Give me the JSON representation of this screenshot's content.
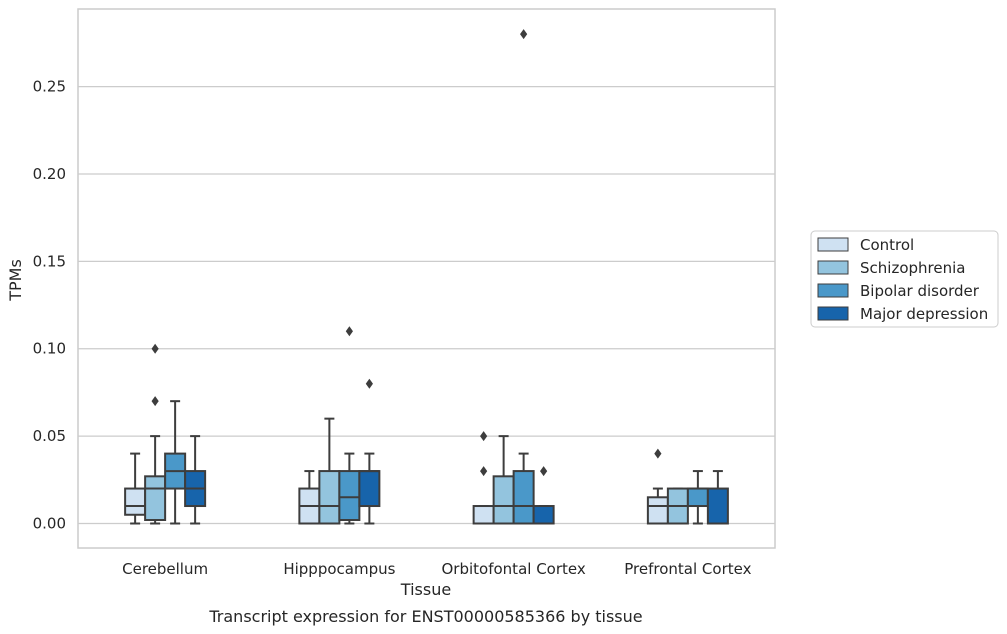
{
  "caption": "Transcript expression for ENST00000585366 by tissue",
  "chart_data": {
    "type": "box",
    "xlabel": "Tissue",
    "ylabel": "TPMs",
    "ylim": [
      -0.013,
      0.294
    ],
    "yticks": [
      "0.00",
      "0.05",
      "0.10",
      "0.15",
      "0.20",
      "0.25"
    ],
    "ytick_values": [
      0.0,
      0.05,
      0.1,
      0.15,
      0.2,
      0.25
    ],
    "grid": "horizontal",
    "legend_position": "right",
    "categories": [
      "Cerebellum",
      "Hipppocampus",
      "Orbitofontal Cortex",
      "Prefrontal Cortex"
    ],
    "series": [
      {
        "name": "Control",
        "color": "#cfe1f2",
        "boxes": [
          {
            "whislo": 0.0,
            "q1": 0.005,
            "med": 0.01,
            "q3": 0.02,
            "whishi": 0.04,
            "fliers": []
          },
          {
            "whislo": 0.0,
            "q1": 0.0,
            "med": 0.01,
            "q3": 0.02,
            "whishi": 0.03,
            "fliers": []
          },
          {
            "whislo": 0.0,
            "q1": 0.0,
            "med": 0.0,
            "q3": 0.01,
            "whishi": 0.01,
            "fliers": [
              0.03,
              0.05
            ]
          },
          {
            "whislo": 0.0,
            "q1": 0.0,
            "med": 0.01,
            "q3": 0.015,
            "whishi": 0.02,
            "fliers": [
              0.04
            ]
          }
        ]
      },
      {
        "name": "Schizophrenia",
        "color": "#93c4de",
        "boxes": [
          {
            "whislo": 0.0,
            "q1": 0.002,
            "med": 0.02,
            "q3": 0.027,
            "whishi": 0.05,
            "fliers": [
              0.07,
              0.1
            ]
          },
          {
            "whislo": 0.0,
            "q1": 0.0,
            "med": 0.01,
            "q3": 0.03,
            "whishi": 0.06,
            "fliers": []
          },
          {
            "whislo": 0.0,
            "q1": 0.0,
            "med": 0.01,
            "q3": 0.027,
            "whishi": 0.05,
            "fliers": []
          },
          {
            "whislo": 0.0,
            "q1": 0.0,
            "med": 0.01,
            "q3": 0.02,
            "whishi": 0.02,
            "fliers": []
          }
        ]
      },
      {
        "name": "Bipolar disorder",
        "color": "#4a98c9",
        "boxes": [
          {
            "whislo": 0.0,
            "q1": 0.02,
            "med": 0.03,
            "q3": 0.04,
            "whishi": 0.07,
            "fliers": []
          },
          {
            "whislo": 0.0,
            "q1": 0.002,
            "med": 0.015,
            "q3": 0.03,
            "whishi": 0.04,
            "fliers": [
              0.11
            ]
          },
          {
            "whislo": 0.0,
            "q1": 0.0,
            "med": 0.01,
            "q3": 0.03,
            "whishi": 0.04,
            "fliers": [
              0.28
            ]
          },
          {
            "whislo": 0.0,
            "q1": 0.01,
            "med": 0.02,
            "q3": 0.02,
            "whishi": 0.03,
            "fliers": []
          }
        ]
      },
      {
        "name": "Major depression",
        "color": "#1764ab",
        "boxes": [
          {
            "whislo": 0.0,
            "q1": 0.01,
            "med": 0.02,
            "q3": 0.03,
            "whishi": 0.05,
            "fliers": []
          },
          {
            "whislo": 0.0,
            "q1": 0.01,
            "med": 0.03,
            "q3": 0.03,
            "whishi": 0.04,
            "fliers": [
              0.08
            ]
          },
          {
            "whislo": 0.0,
            "q1": 0.0,
            "med": 0.0,
            "q3": 0.01,
            "whishi": 0.01,
            "fliers": [
              0.03
            ]
          },
          {
            "whislo": 0.0,
            "q1": 0.0,
            "med": 0.0,
            "q3": 0.02,
            "whishi": 0.03,
            "fliers": []
          }
        ]
      }
    ]
  }
}
